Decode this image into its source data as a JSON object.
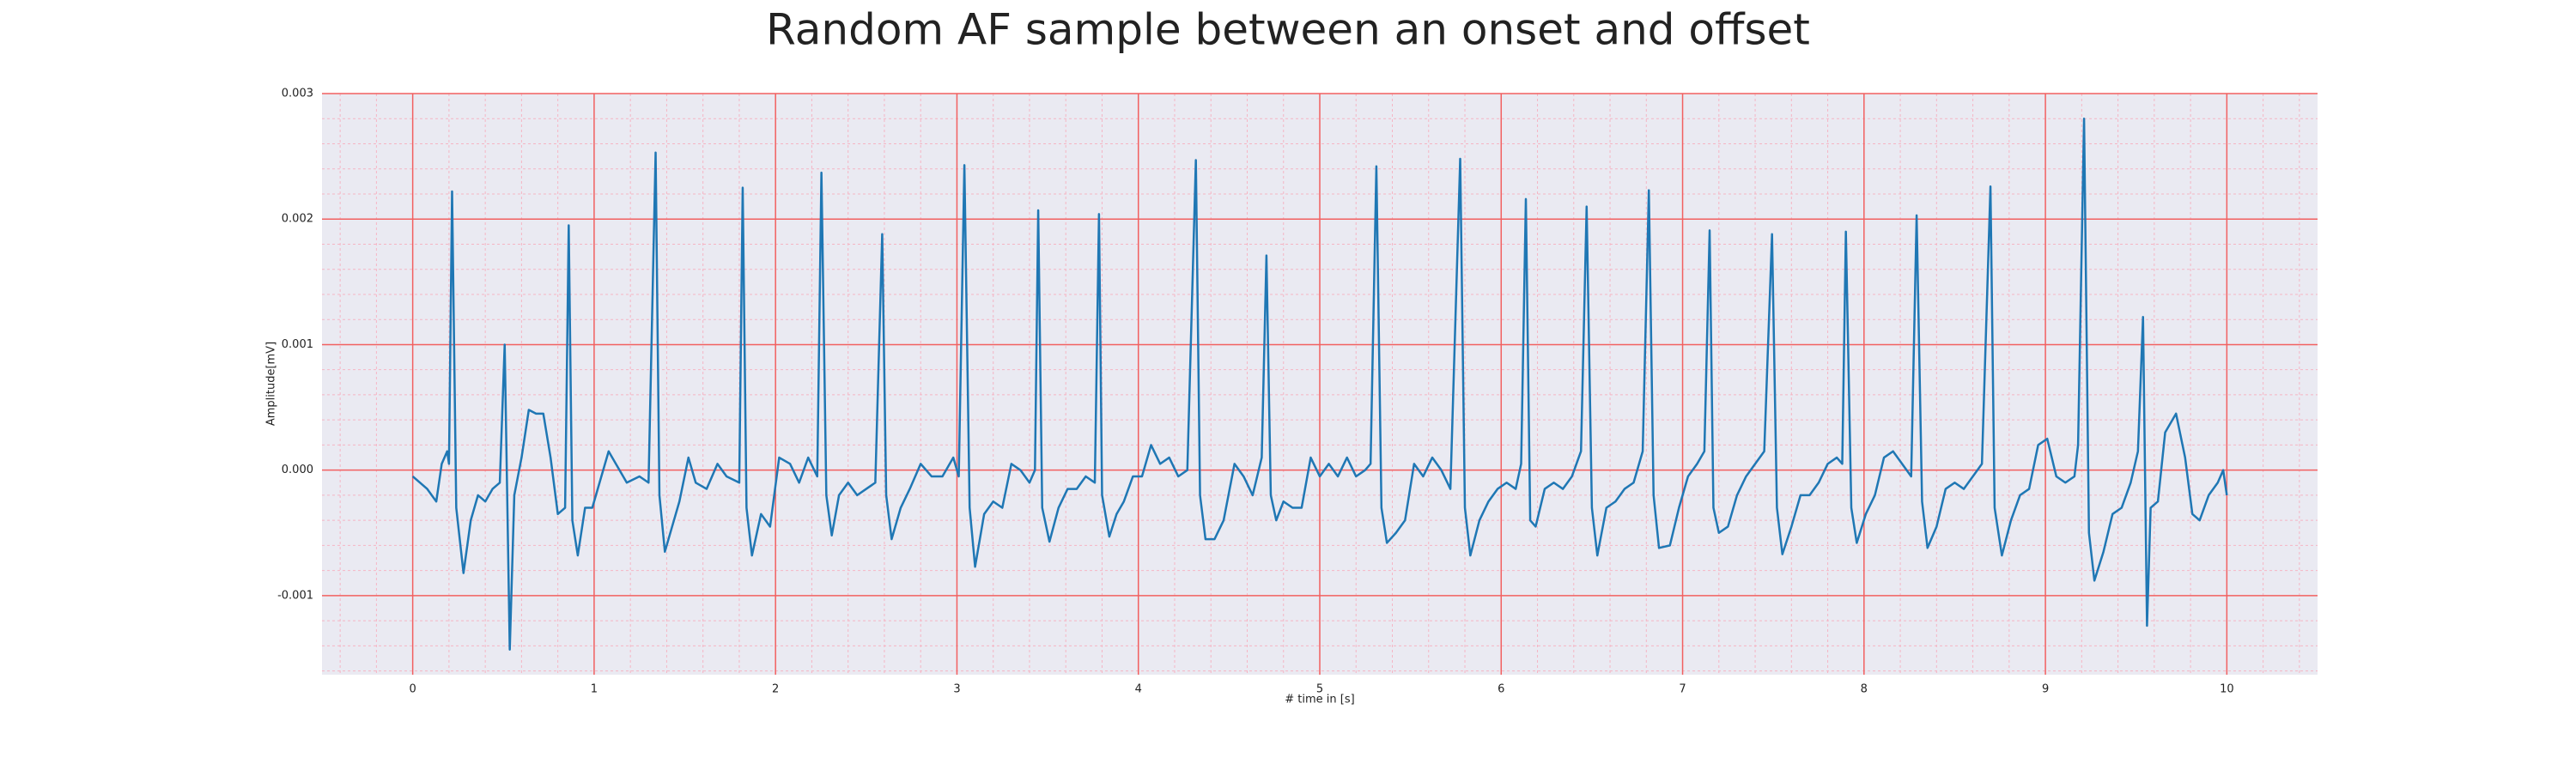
{
  "chart_data": {
    "type": "line",
    "title": "Random AF sample between an onset and offset",
    "xlabel": "# time in [s]",
    "ylabel": "Amplitude[mV]",
    "color": "#1f77b4",
    "xlim": [
      -0.5,
      10.5
    ],
    "ylim": [
      -0.00163,
      0.003
    ],
    "xticks": [
      0,
      1,
      2,
      3,
      4,
      5,
      6,
      7,
      8,
      9,
      10
    ],
    "yticks": [
      -0.001,
      {
        "value": 0,
        "label": "0.000"
      },
      0.001,
      0.002,
      0.003
    ],
    "grid": true,
    "minor_grid": true,
    "x": [
      0.0,
      0.08,
      0.13,
      0.16,
      0.19,
      0.2,
      0.217,
      0.24,
      0.28,
      0.32,
      0.36,
      0.4,
      0.44,
      0.48,
      0.507,
      0.535,
      0.56,
      0.6,
      0.64,
      0.68,
      0.72,
      0.76,
      0.8,
      0.84,
      0.86,
      0.88,
      0.91,
      0.95,
      0.99,
      1.03,
      1.08,
      1.12,
      1.18,
      1.25,
      1.3,
      1.339,
      1.36,
      1.39,
      1.43,
      1.47,
      1.52,
      1.56,
      1.62,
      1.68,
      1.73,
      1.8,
      1.819,
      1.84,
      1.87,
      1.92,
      1.97,
      2.02,
      2.08,
      2.13,
      2.18,
      2.23,
      2.253,
      2.28,
      2.31,
      2.35,
      2.4,
      2.45,
      2.5,
      2.55,
      2.588,
      2.61,
      2.64,
      2.69,
      2.74,
      2.8,
      2.86,
      2.92,
      2.98,
      3.01,
      3.041,
      3.07,
      3.1,
      3.15,
      3.2,
      3.25,
      3.3,
      3.35,
      3.4,
      3.43,
      3.448,
      3.47,
      3.51,
      3.56,
      3.61,
      3.66,
      3.71,
      3.76,
      3.783,
      3.8,
      3.84,
      3.88,
      3.92,
      3.97,
      4.02,
      4.07,
      4.12,
      4.17,
      4.22,
      4.27,
      4.317,
      4.34,
      4.37,
      4.42,
      4.47,
      4.53,
      4.58,
      4.63,
      4.68,
      4.706,
      4.73,
      4.76,
      4.8,
      4.85,
      4.9,
      4.95,
      5.0,
      5.05,
      5.1,
      5.15,
      5.2,
      5.25,
      5.28,
      5.312,
      5.34,
      5.37,
      5.42,
      5.47,
      5.52,
      5.57,
      5.62,
      5.67,
      5.72,
      5.774,
      5.8,
      5.83,
      5.88,
      5.93,
      5.98,
      6.03,
      6.08,
      6.11,
      6.136,
      6.16,
      6.19,
      6.24,
      6.29,
      6.34,
      6.39,
      6.44,
      6.471,
      6.5,
      6.53,
      6.58,
      6.63,
      6.68,
      6.73,
      6.78,
      6.814,
      6.84,
      6.87,
      6.93,
      6.98,
      7.03,
      7.08,
      7.12,
      7.149,
      7.17,
      7.2,
      7.25,
      7.3,
      7.35,
      7.4,
      7.45,
      7.493,
      7.52,
      7.55,
      7.6,
      7.65,
      7.7,
      7.75,
      7.8,
      7.85,
      7.88,
      7.9,
      7.93,
      7.96,
      8.01,
      8.06,
      8.11,
      8.16,
      8.21,
      8.26,
      8.29,
      8.32,
      8.35,
      8.4,
      8.45,
      8.5,
      8.55,
      8.6,
      8.65,
      8.697,
      8.72,
      8.76,
      8.81,
      8.86,
      8.91,
      8.96,
      9.01,
      9.06,
      9.11,
      9.16,
      9.18,
      9.213,
      9.24,
      9.27,
      9.32,
      9.37,
      9.42,
      9.47,
      9.51,
      9.538,
      9.56,
      9.58,
      9.62,
      9.66,
      9.72,
      9.77,
      9.81,
      9.85,
      9.9,
      9.95,
      9.98,
      10.0
    ],
    "values": [
      -5e-05,
      -0.00015,
      -0.00025,
      5e-05,
      0.00015,
      5e-05,
      0.00222,
      -0.0003,
      -0.00082,
      -0.0004,
      -0.0002,
      -0.00025,
      -0.00015,
      -0.0001,
      0.001,
      -0.00143,
      -0.0002,
      0.0001,
      0.00048,
      0.00045,
      0.00045,
      0.0001,
      -0.00035,
      -0.0003,
      0.00195,
      -0.0004,
      -0.00068,
      -0.0003,
      -0.0003,
      -0.0001,
      0.00015,
      5e-05,
      -0.0001,
      -5e-05,
      -0.0001,
      0.00253,
      -0.0002,
      -0.00065,
      -0.00045,
      -0.00025,
      0.0001,
      -0.0001,
      -0.00015,
      5e-05,
      -5e-05,
      -0.0001,
      0.00225,
      -0.0003,
      -0.00068,
      -0.00035,
      -0.00045,
      0.0001,
      5e-05,
      -0.0001,
      0.0001,
      -5e-05,
      0.00237,
      -0.0002,
      -0.00052,
      -0.0002,
      -0.0001,
      -0.0002,
      -0.00015,
      -0.0001,
      0.00188,
      -0.0002,
      -0.00055,
      -0.0003,
      -0.00015,
      5e-05,
      -5e-05,
      -5e-05,
      0.0001,
      -5e-05,
      0.00243,
      -0.0003,
      -0.00077,
      -0.00035,
      -0.00025,
      -0.0003,
      5e-05,
      0,
      -0.0001,
      0,
      0.00207,
      -0.0003,
      -0.00057,
      -0.0003,
      -0.00015,
      -0.00015,
      -5e-05,
      -0.0001,
      0.00204,
      -0.0002,
      -0.00053,
      -0.00035,
      -0.00025,
      -5e-05,
      -5e-05,
      0.0002,
      5e-05,
      0.0001,
      -5e-05,
      0,
      0.00247,
      -0.0002,
      -0.00055,
      -0.00055,
      -0.0004,
      5e-05,
      -5e-05,
      -0.0002,
      0.0001,
      0.00171,
      -0.0002,
      -0.0004,
      -0.00025,
      -0.0003,
      -0.0003,
      0.0001,
      -5e-05,
      5e-05,
      -5e-05,
      0.0001,
      -5e-05,
      0,
      5e-05,
      0.00242,
      -0.0003,
      -0.00058,
      -0.0005,
      -0.0004,
      5e-05,
      -5e-05,
      0.0001,
      0,
      -0.00015,
      0.00248,
      -0.0003,
      -0.00068,
      -0.0004,
      -0.00025,
      -0.00015,
      -0.0001,
      -0.00015,
      5e-05,
      0.00216,
      -0.0004,
      -0.00045,
      -0.00015,
      -0.0001,
      -0.00015,
      -5e-05,
      0.00015,
      0.0021,
      -0.0003,
      -0.00068,
      -0.0003,
      -0.00025,
      -0.00015,
      -0.0001,
      0.00015,
      0.00223,
      -0.0002,
      -0.00062,
      -0.0006,
      -0.0003,
      -5e-05,
      5e-05,
      0.00015,
      0.00191,
      -0.0003,
      -0.0005,
      -0.00045,
      -0.0002,
      -5e-05,
      5e-05,
      0.00015,
      0.00188,
      -0.0003,
      -0.00067,
      -0.00045,
      -0.0002,
      -0.0002,
      -0.0001,
      5e-05,
      0.0001,
      5e-05,
      0.0019,
      -0.0003,
      -0.00058,
      -0.00035,
      -0.0002,
      0.0001,
      0.00015,
      5e-05,
      -5e-05,
      0.00203,
      -0.00025,
      -0.00062,
      -0.00045,
      -0.00015,
      -0.0001,
      -0.00015,
      -5e-05,
      5e-05,
      0.00226,
      -0.0003,
      -0.00068,
      -0.0004,
      -0.0002,
      -0.00015,
      0.0002,
      0.00025,
      -5e-05,
      -0.0001,
      -5e-05,
      0.0002,
      0.0028,
      -0.0005,
      -0.00088,
      -0.00065,
      -0.00035,
      -0.0003,
      -0.0001,
      0.00015,
      0.00122,
      -0.00124,
      -0.0003,
      -0.00025,
      0.0003,
      0.00045,
      0.0001,
      -0.00035,
      -0.0004,
      -0.0002,
      -0.0001,
      0,
      -0.0002
    ]
  }
}
